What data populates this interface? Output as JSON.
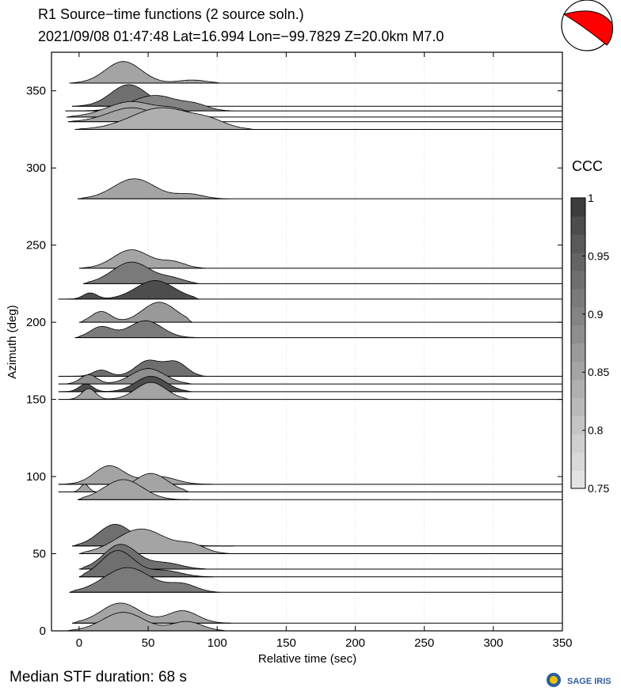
{
  "header": {
    "title": "R1 Source−time functions (2 source soln.)",
    "subtitle": "2021/09/08 01:47:48  Lat=16.994 Lon=−99.7829  Z=20.0km  M7.0"
  },
  "footer": {
    "median_text": "Median STF duration: 68 s",
    "logo_text": "SAGE IRIS"
  },
  "colorbar": {
    "title": "CCC",
    "range": [
      0.75,
      1
    ],
    "tick_labels": [
      "1",
      "0.95",
      "0.9",
      "0.85",
      "0.8",
      "0.75"
    ],
    "colors": [
      "#e3e3e3",
      "#d9d9d9",
      "#cfcfcf",
      "#c4c4c4",
      "#b9b9b9",
      "#afafaf",
      "#a4a4a4",
      "#999999",
      "#8e8e8e",
      "#848484",
      "#7a7a7a",
      "#6f6f6f",
      "#646464",
      "#595959",
      "#4d4d4d",
      "#3c3c3c"
    ]
  },
  "beachball": {
    "fill": "#ff0000",
    "outline": "#000000"
  },
  "chart_data": {
    "type": "area",
    "xlabel": "Relative time (sec)",
    "ylabel": "Azimuth (deg)",
    "xlim": [
      -20,
      350
    ],
    "ylim": [
      0,
      375
    ],
    "xticks": [
      "0",
      "50",
      "100",
      "150",
      "200",
      "250",
      "300",
      "350"
    ],
    "yticks": [
      "0",
      "50",
      "100",
      "150",
      "200",
      "250",
      "300",
      "350"
    ],
    "grid": "vertical dotted",
    "traces": [
      {
        "az": 355,
        "start": -7,
        "end": 103,
        "color": "#a4a4a4",
        "peaks": [
          [
            32,
            14,
            13
          ],
          [
            82,
            2,
            10
          ]
        ]
      },
      {
        "az": 340,
        "start": -5,
        "end": 82,
        "color": "#6f6f6f",
        "peaks": [
          [
            36,
            14,
            13
          ]
        ]
      },
      {
        "az": 337,
        "start": -10,
        "end": 112,
        "color": "#848484",
        "peaks": [
          [
            55,
            10,
            17
          ],
          [
            85,
            3,
            9
          ]
        ]
      },
      {
        "az": 333,
        "start": -9,
        "end": 97,
        "color": "#a4a4a4",
        "peaks": [
          [
            38,
            10,
            18
          ],
          [
            70,
            4,
            10
          ]
        ]
      },
      {
        "az": 330,
        "start": -8,
        "end": 95,
        "color": "#a4a4a4",
        "peaks": [
          [
            38,
            9,
            17
          ]
        ]
      },
      {
        "az": 325,
        "start": -3,
        "end": 127,
        "color": "#afafaf",
        "peaks": [
          [
            60,
            14,
            22
          ],
          [
            95,
            4,
            12
          ]
        ]
      },
      {
        "az": 280,
        "start": -1,
        "end": 108,
        "color": "#a4a4a4",
        "peaks": [
          [
            40,
            13,
            15
          ],
          [
            80,
            3,
            10
          ]
        ]
      },
      {
        "az": 235,
        "start": 0,
        "end": 92,
        "color": "#a4a4a4",
        "peaks": [
          [
            38,
            12,
            13
          ],
          [
            68,
            4,
            9
          ]
        ]
      },
      {
        "az": 225,
        "start": 3,
        "end": 87,
        "color": "#7a7a7a",
        "peaks": [
          [
            38,
            14,
            14
          ],
          [
            68,
            3,
            9
          ]
        ]
      },
      {
        "az": 215,
        "start": -15,
        "end": 87,
        "color": "#4d4d4d",
        "peaks": [
          [
            8,
            4,
            5
          ],
          [
            55,
            12,
            14
          ]
        ]
      },
      {
        "az": 200,
        "start": 0,
        "end": 82,
        "color": "#999999",
        "peaks": [
          [
            16,
            7,
            7
          ],
          [
            58,
            13,
            12
          ]
        ]
      },
      {
        "az": 190,
        "start": -3,
        "end": 87,
        "color": "#7a7a7a",
        "peaks": [
          [
            16,
            7,
            8
          ],
          [
            48,
            11,
            12
          ]
        ]
      },
      {
        "az": 165,
        "start": -15,
        "end": 92,
        "color": "#6f6f6f",
        "peaks": [
          [
            16,
            4,
            6
          ],
          [
            50,
            10,
            9
          ],
          [
            70,
            9,
            8
          ]
        ]
      },
      {
        "az": 160,
        "start": -15,
        "end": 82,
        "color": "#8e8e8e",
        "peaks": [
          [
            7,
            6,
            6
          ],
          [
            50,
            10,
            12
          ]
        ]
      },
      {
        "az": 155,
        "start": -15,
        "end": 82,
        "color": "#4d4d4d",
        "peaks": [
          [
            5,
            5,
            5
          ],
          [
            52,
            10,
            11
          ]
        ]
      },
      {
        "az": 150,
        "start": -15,
        "end": 80,
        "color": "#a4a4a4",
        "peaks": [
          [
            7,
            7,
            5
          ],
          [
            52,
            11,
            11
          ]
        ]
      },
      {
        "az": 95,
        "start": -15,
        "end": 97,
        "color": "#a4a4a4",
        "peaks": [
          [
            22,
            12,
            11
          ],
          [
            58,
            5,
            12
          ]
        ]
      },
      {
        "az": 90,
        "start": -15,
        "end": 80,
        "color": "#a4a4a4",
        "peaks": [
          [
            4,
            5,
            3
          ],
          [
            52,
            12,
            12
          ]
        ]
      },
      {
        "az": 85,
        "start": -1,
        "end": 80,
        "color": "#a4a4a4",
        "peaks": [
          [
            32,
            13,
            14
          ]
        ]
      },
      {
        "az": 55,
        "start": -5,
        "end": 112,
        "color": "#6f6f6f",
        "peaks": [
          [
            26,
            14,
            12
          ],
          [
            62,
            4,
            12
          ]
        ]
      },
      {
        "az": 50,
        "start": 0,
        "end": 112,
        "color": "#a4a4a4",
        "peaks": [
          [
            45,
            16,
            18
          ],
          [
            82,
            5,
            10
          ]
        ]
      },
      {
        "az": 40,
        "start": 0,
        "end": 95,
        "color": "#6f6f6f",
        "peaks": [
          [
            30,
            16,
            12
          ],
          [
            62,
            4,
            12
          ]
        ]
      },
      {
        "az": 35,
        "start": 0,
        "end": 97,
        "color": "#6f6f6f",
        "peaks": [
          [
            28,
            17,
            12
          ],
          [
            62,
            4,
            12
          ]
        ]
      },
      {
        "az": 25,
        "start": -7,
        "end": 102,
        "color": "#7a7a7a",
        "peaks": [
          [
            35,
            16,
            17
          ],
          [
            75,
            5,
            10
          ]
        ]
      },
      {
        "az": 5,
        "start": -5,
        "end": 110,
        "color": "#a4a4a4",
        "peaks": [
          [
            30,
            13,
            14
          ],
          [
            75,
            8,
            11
          ]
        ]
      },
      {
        "az": 0,
        "start": -10,
        "end": 108,
        "color": "#a4a4a4",
        "peaks": [
          [
            32,
            12,
            15
          ],
          [
            78,
            6,
            11
          ]
        ]
      }
    ]
  }
}
